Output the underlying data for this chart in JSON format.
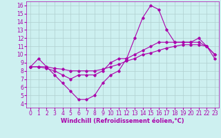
{
  "title": "",
  "xlabel": "Windchill (Refroidissement éolien,°C)",
  "background_color": "#cdf0f0",
  "grid_color": "#b0d0d0",
  "line_color": "#aa00aa",
  "xlim": [
    -0.5,
    23.5
  ],
  "ylim": [
    3.5,
    16.5
  ],
  "xticks": [
    0,
    1,
    2,
    3,
    4,
    5,
    6,
    7,
    8,
    9,
    10,
    11,
    12,
    13,
    14,
    15,
    16,
    17,
    18,
    19,
    20,
    21,
    22,
    23
  ],
  "yticks": [
    4,
    5,
    6,
    7,
    8,
    9,
    10,
    11,
    12,
    13,
    14,
    15,
    16
  ],
  "series1_x": [
    0,
    1,
    2,
    3,
    4,
    5,
    6,
    7,
    8,
    9,
    10,
    11,
    12,
    13,
    14,
    15,
    16,
    17,
    18,
    19,
    20,
    21,
    22,
    23
  ],
  "series1_y": [
    8.5,
    9.5,
    8.5,
    7.5,
    6.5,
    5.5,
    4.5,
    4.5,
    5.0,
    6.5,
    7.5,
    8.0,
    9.5,
    12.0,
    14.5,
    16.0,
    15.5,
    13.0,
    11.5,
    11.5,
    11.5,
    12.0,
    11.0,
    10.0
  ],
  "series2_x": [
    0,
    1,
    2,
    3,
    4,
    5,
    6,
    7,
    8,
    9,
    10,
    11,
    12,
    13,
    14,
    15,
    16,
    17,
    18,
    19,
    20,
    21,
    22,
    23
  ],
  "series2_y": [
    8.5,
    8.5,
    8.5,
    8.3,
    8.2,
    8.0,
    8.0,
    8.0,
    8.0,
    8.2,
    8.5,
    8.8,
    9.2,
    9.5,
    10.0,
    10.2,
    10.5,
    10.8,
    11.0,
    11.2,
    11.2,
    11.2,
    11.0,
    10.0
  ],
  "series3_x": [
    0,
    1,
    2,
    3,
    4,
    5,
    6,
    7,
    8,
    9,
    10,
    11,
    12,
    13,
    14,
    15,
    16,
    17,
    18,
    19,
    20,
    21,
    22,
    23
  ],
  "series3_y": [
    8.5,
    8.5,
    8.3,
    8.0,
    7.5,
    7.0,
    7.5,
    7.5,
    7.5,
    8.0,
    9.0,
    9.5,
    9.5,
    10.0,
    10.5,
    11.0,
    11.5,
    11.5,
    11.5,
    11.5,
    11.5,
    11.5,
    11.0,
    9.5
  ],
  "tick_fontsize": 5.5,
  "xlabel_fontsize": 6,
  "marker_size": 1.8,
  "line_width": 0.8
}
